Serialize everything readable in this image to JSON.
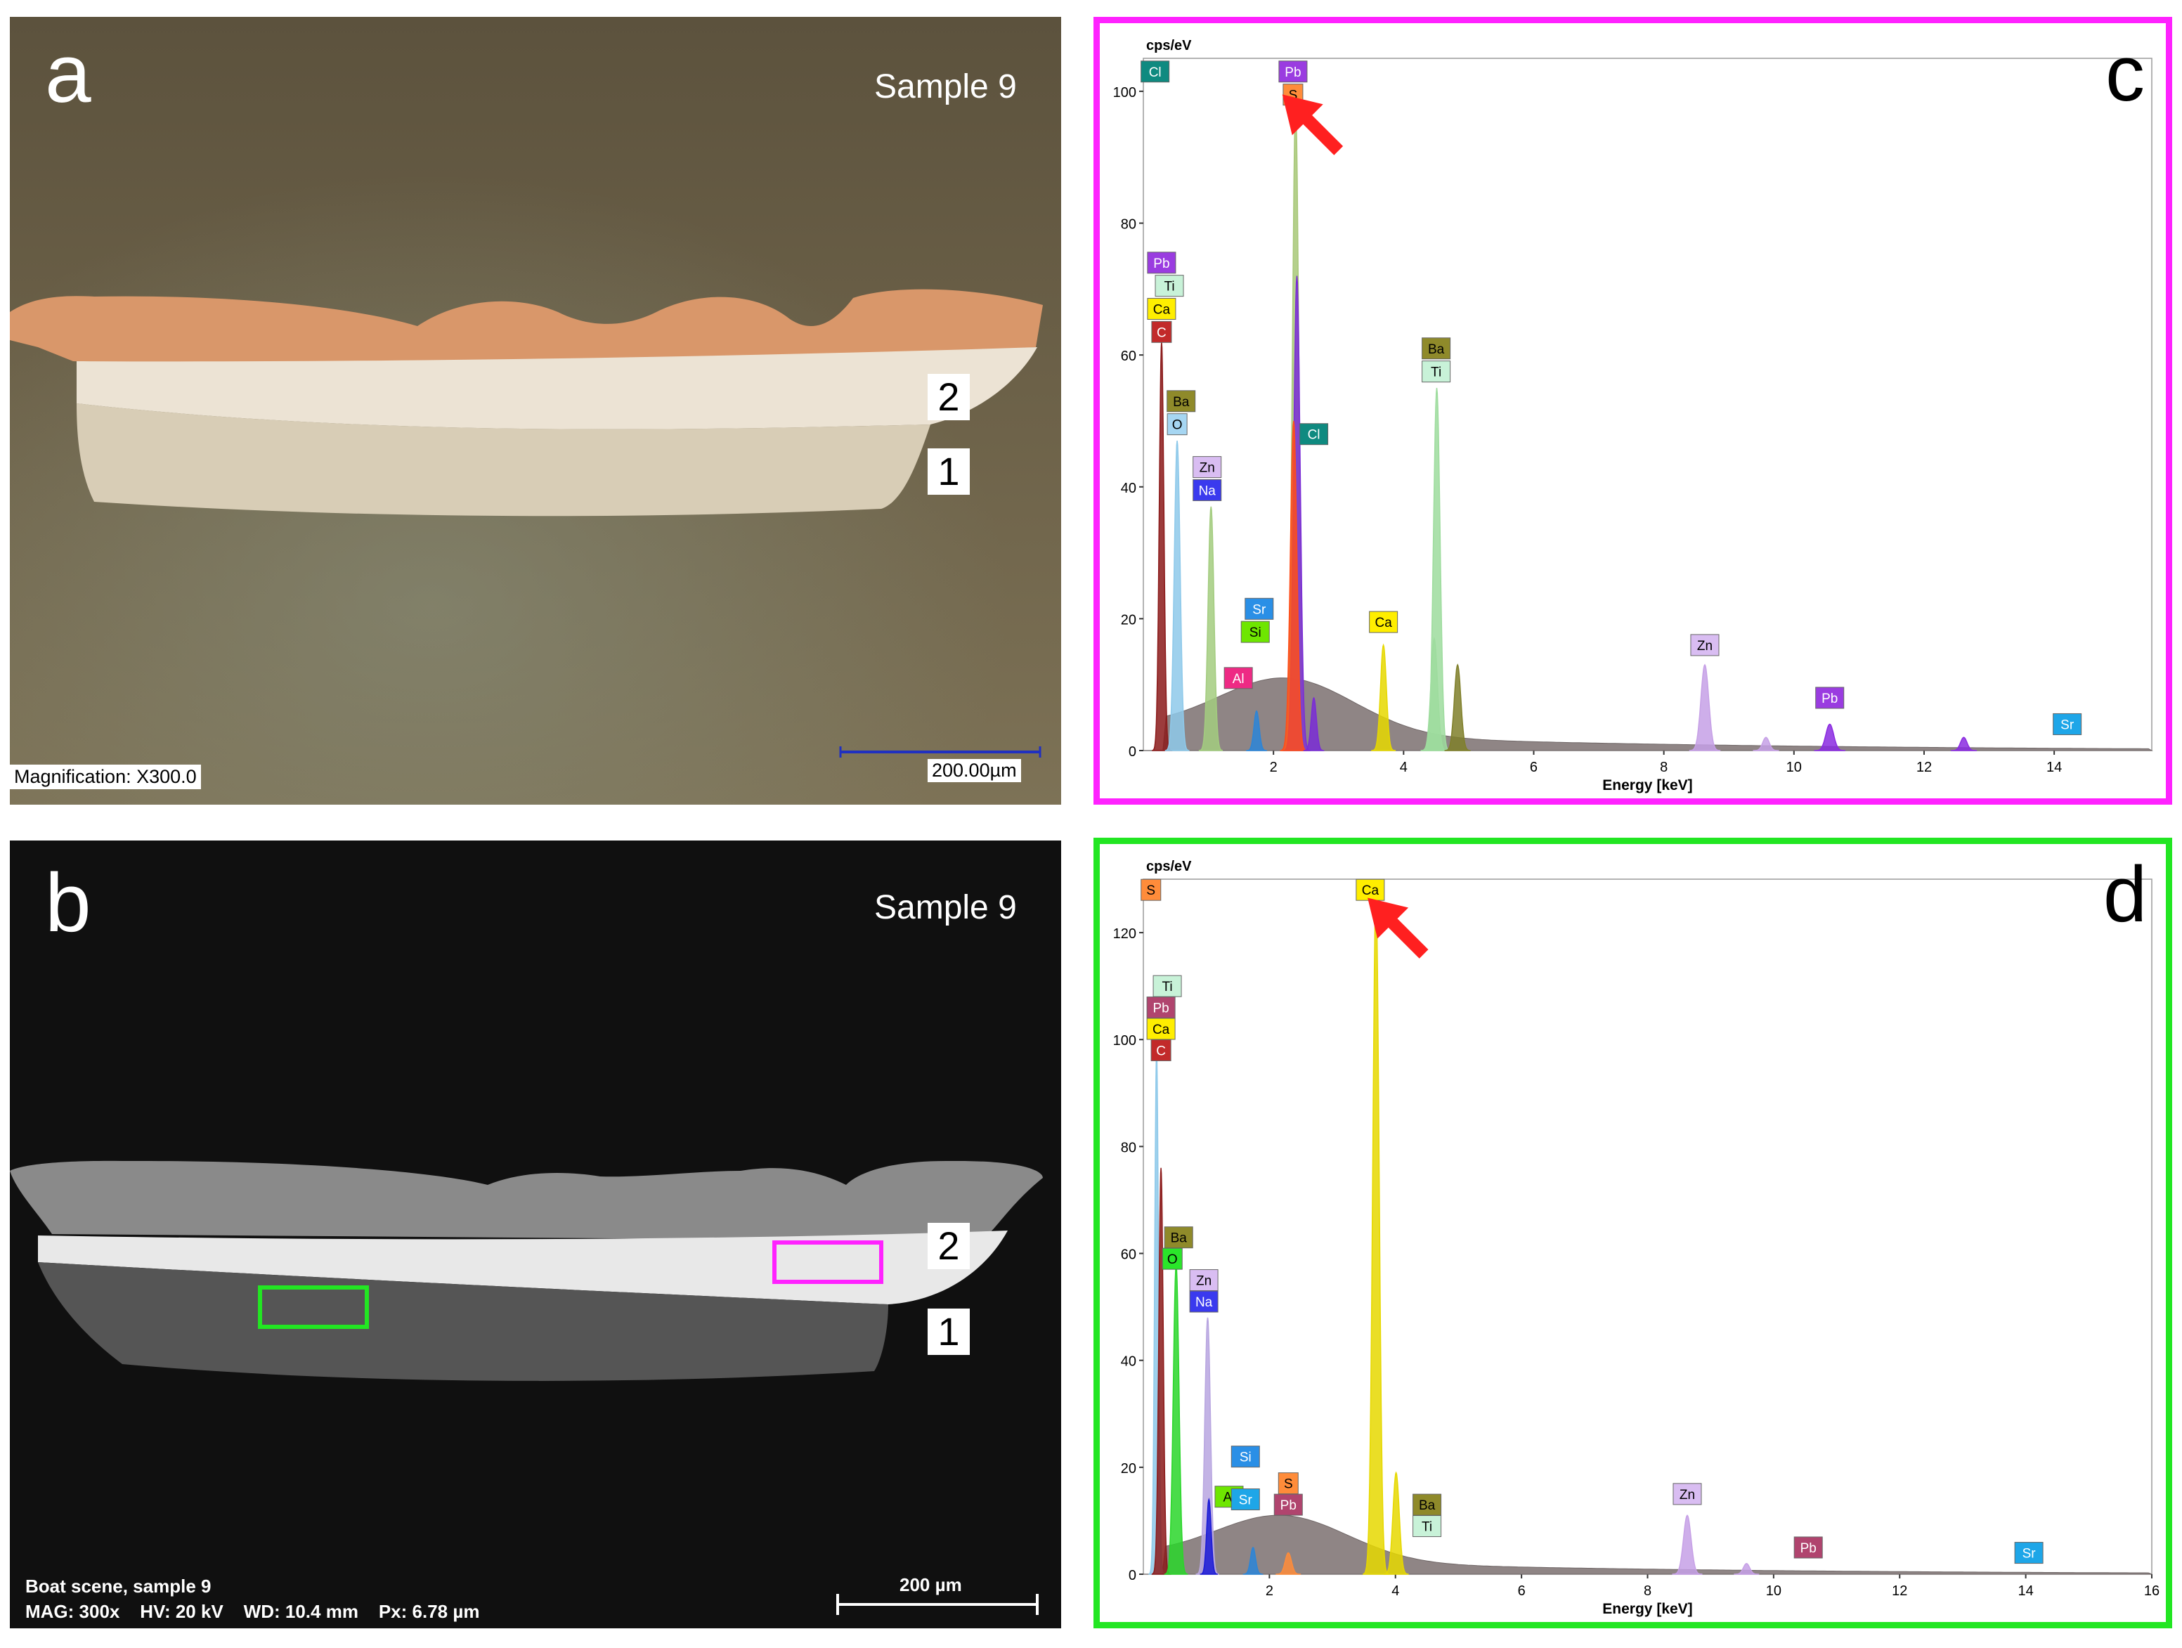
{
  "panel_a": {
    "letter": "a",
    "sample": "Sample 9",
    "layers": [
      "2",
      "1"
    ],
    "magnification": "Magnification: X300.0",
    "scale": "200.00µm"
  },
  "panel_b": {
    "letter": "b",
    "sample": "Sample 9",
    "layers": [
      "2",
      "1"
    ],
    "info_line1": "Boat scene, sample 9",
    "info_line2": "MAG: 300x    HV: 20 kV    WD: 10.4 mm    Px: 6.78 µm",
    "scale": "200 µm",
    "box_colors": {
      "magenta": "#ff22ff",
      "green": "#22e622"
    }
  },
  "chart_data": [
    {
      "type": "area",
      "panel": "c",
      "letter": "c",
      "ylabel": "cps/eV",
      "xlabel": "Energy [keV]",
      "xlim": [
        0,
        15.5
      ],
      "ylim": [
        0,
        105
      ],
      "xticks": [
        2,
        4,
        6,
        8,
        10,
        12,
        14
      ],
      "yticks": [
        0,
        20,
        40,
        60,
        80,
        100
      ],
      "border_color": "#ff22ff",
      "peaks": [
        {
          "e": 0.28,
          "h": 62,
          "c": "#8b1a1a",
          "w": 0.035
        },
        {
          "e": 0.52,
          "h": 47,
          "c": "#8ec9ea",
          "w": 0.045
        },
        {
          "e": 1.04,
          "h": 37,
          "c": "#a3cc7f",
          "w": 0.045
        },
        {
          "e": 1.74,
          "h": 6,
          "c": "#2b85d8",
          "w": 0.04
        },
        {
          "e": 2.34,
          "h": 98,
          "c": "#a8c878",
          "w": 0.05
        },
        {
          "e": 2.36,
          "h": 72,
          "c": "#7a2cd6",
          "w": 0.05
        },
        {
          "e": 2.31,
          "h": 50,
          "c": "#ff4d1a",
          "w": 0.05
        },
        {
          "e": 2.62,
          "h": 8,
          "c": "#7a2cd6",
          "w": 0.04
        },
        {
          "e": 3.69,
          "h": 16,
          "c": "#e6d800",
          "w": 0.045
        },
        {
          "e": 4.51,
          "h": 55,
          "c": "#9edc9e",
          "w": 0.05
        },
        {
          "e": 4.47,
          "h": 17,
          "c": "#9edc9e",
          "w": 0.05
        },
        {
          "e": 4.83,
          "h": 13,
          "c": "#7f7f2a",
          "w": 0.05
        },
        {
          "e": 8.63,
          "h": 13,
          "c": "#c6a0e6",
          "w": 0.06
        },
        {
          "e": 9.57,
          "h": 2,
          "c": "#c6a0e6",
          "w": 0.05
        },
        {
          "e": 10.55,
          "h": 4,
          "c": "#8a2ae0",
          "w": 0.06
        },
        {
          "e": 12.61,
          "h": 2,
          "c": "#8a2ae0",
          "w": 0.05
        }
      ],
      "labels": [
        {
          "t": "Cl",
          "e": 0.18,
          "y": 103,
          "bg": "#0f8a80",
          "fg": "#ffffff"
        },
        {
          "t": "Pb",
          "e": 2.3,
          "y": 103,
          "bg": "#9a3ce0",
          "fg": "#ffffff"
        },
        {
          "t": "S",
          "e": 2.3,
          "y": 99.5,
          "bg": "#ff8c3a",
          "fg": "#000000"
        },
        {
          "t": "Pb",
          "e": 0.28,
          "y": 74,
          "bg": "#9a3ce0",
          "fg": "#ffffff"
        },
        {
          "t": "Ti",
          "e": 0.4,
          "y": 70.5,
          "bg": "#c8f2d8",
          "fg": "#000000"
        },
        {
          "t": "Ca",
          "e": 0.28,
          "y": 67,
          "bg": "#ffee00",
          "fg": "#000000"
        },
        {
          "t": "C",
          "e": 0.28,
          "y": 63.5,
          "bg": "#c22a2a",
          "fg": "#ffffff"
        },
        {
          "t": "Ba",
          "e": 0.58,
          "y": 53,
          "bg": "#8f8a2a",
          "fg": "#000000"
        },
        {
          "t": "O",
          "e": 0.52,
          "y": 49.5,
          "bg": "#a6d6f2",
          "fg": "#000000"
        },
        {
          "t": "Zn",
          "e": 0.98,
          "y": 43,
          "bg": "#d9bdf2",
          "fg": "#000000"
        },
        {
          "t": "Na",
          "e": 0.98,
          "y": 39.5,
          "bg": "#3a3aee",
          "fg": "#ffffff"
        },
        {
          "t": "Cl",
          "e": 2.62,
          "y": 48,
          "bg": "#0f8a80",
          "fg": "#ffffff"
        },
        {
          "t": "Ba",
          "e": 4.5,
          "y": 61,
          "bg": "#8f8a2a",
          "fg": "#000000"
        },
        {
          "t": "Ti",
          "e": 4.5,
          "y": 57.5,
          "bg": "#c8f2d8",
          "fg": "#000000"
        },
        {
          "t": "Sr",
          "e": 1.78,
          "y": 21.5,
          "bg": "#2a8fe6",
          "fg": "#ffffff"
        },
        {
          "t": "Si",
          "e": 1.72,
          "y": 18,
          "bg": "#6ee600",
          "fg": "#000000"
        },
        {
          "t": "Al",
          "e": 1.46,
          "y": 11,
          "bg": "#ee2a84",
          "fg": "#ffffff"
        },
        {
          "t": "Ca",
          "e": 3.69,
          "y": 19.5,
          "bg": "#ffee00",
          "fg": "#000000"
        },
        {
          "t": "Zn",
          "e": 8.63,
          "y": 16,
          "bg": "#d9bdf2",
          "fg": "#000000"
        },
        {
          "t": "Pb",
          "e": 10.55,
          "y": 8,
          "bg": "#9a3ce0",
          "fg": "#ffffff"
        },
        {
          "t": "Sr",
          "e": 14.2,
          "y": 4,
          "bg": "#1ea6e8",
          "fg": "#ffffff"
        }
      ],
      "arrow": {
        "e": 3.0,
        "y": 91,
        "color": "#ff2020"
      }
    },
    {
      "type": "area",
      "panel": "d",
      "letter": "d",
      "ylabel": "cps/eV",
      "xlabel": "Energy [keV]",
      "xlim": [
        0,
        16
      ],
      "ylim": [
        0,
        130
      ],
      "xticks": [
        2,
        4,
        6,
        8,
        10,
        12,
        14,
        16
      ],
      "yticks": [
        0,
        20,
        40,
        60,
        80,
        100,
        120
      ],
      "border_color": "#22e622",
      "peaks": [
        {
          "e": 0.21,
          "h": 98,
          "c": "#8ec9ea",
          "w": 0.03
        },
        {
          "e": 0.28,
          "h": 76,
          "c": "#8b1a1a",
          "w": 0.035
        },
        {
          "e": 0.52,
          "h": 58,
          "c": "#2ad62a",
          "w": 0.045
        },
        {
          "e": 1.02,
          "h": 48,
          "c": "#b8a6e0",
          "w": 0.045
        },
        {
          "e": 1.04,
          "h": 14,
          "c": "#1a1ad6",
          "w": 0.035
        },
        {
          "e": 1.74,
          "h": 5,
          "c": "#2b85d8",
          "w": 0.04
        },
        {
          "e": 2.3,
          "h": 4,
          "c": "#ff8c3a",
          "w": 0.05
        },
        {
          "e": 3.69,
          "h": 128,
          "c": "#e6d800",
          "w": 0.05
        },
        {
          "e": 4.01,
          "h": 19,
          "c": "#e6d800",
          "w": 0.05
        },
        {
          "e": 8.63,
          "h": 11,
          "c": "#c6a0e6",
          "w": 0.06
        },
        {
          "e": 9.57,
          "h": 2,
          "c": "#c6a0e6",
          "w": 0.05
        }
      ],
      "labels": [
        {
          "t": "S",
          "e": 0.12,
          "y": 128,
          "bg": "#ff8c3a",
          "fg": "#000000"
        },
        {
          "t": "Ca",
          "e": 3.6,
          "y": 128,
          "bg": "#ffee00",
          "fg": "#000000"
        },
        {
          "t": "Ti",
          "e": 0.38,
          "y": 110,
          "bg": "#c8f2d8",
          "fg": "#000000"
        },
        {
          "t": "Pb",
          "e": 0.28,
          "y": 106,
          "bg": "#b0446e",
          "fg": "#ffffff"
        },
        {
          "t": "Ca",
          "e": 0.28,
          "y": 102,
          "bg": "#ffee00",
          "fg": "#000000"
        },
        {
          "t": "C",
          "e": 0.28,
          "y": 98,
          "bg": "#c22a2a",
          "fg": "#ffffff"
        },
        {
          "t": "Ba",
          "e": 0.56,
          "y": 63,
          "bg": "#8f8a2a",
          "fg": "#000000"
        },
        {
          "t": "O",
          "e": 0.46,
          "y": 59,
          "bg": "#2ae62a",
          "fg": "#000000"
        },
        {
          "t": "Zn",
          "e": 0.96,
          "y": 55,
          "bg": "#d9bdf2",
          "fg": "#000000"
        },
        {
          "t": "Na",
          "e": 0.96,
          "y": 51,
          "bg": "#3a3aee",
          "fg": "#ffffff"
        },
        {
          "t": "Si",
          "e": 1.62,
          "y": 22,
          "bg": "#2a8fe6",
          "fg": "#ffffff"
        },
        {
          "t": "Al",
          "e": 1.36,
          "y": 14.5,
          "bg": "#6ee600",
          "fg": "#000000"
        },
        {
          "t": "Sr",
          "e": 1.62,
          "y": 14,
          "bg": "#1ea6e8",
          "fg": "#ffffff"
        },
        {
          "t": "S",
          "e": 2.3,
          "y": 17,
          "bg": "#ff8c3a",
          "fg": "#000000"
        },
        {
          "t": "Pb",
          "e": 2.3,
          "y": 13,
          "bg": "#b0446e",
          "fg": "#ffffff"
        },
        {
          "t": "Ba",
          "e": 4.5,
          "y": 13,
          "bg": "#8f8a2a",
          "fg": "#000000"
        },
        {
          "t": "Ti",
          "e": 4.5,
          "y": 9,
          "bg": "#c8f2d8",
          "fg": "#000000"
        },
        {
          "t": "Zn",
          "e": 8.63,
          "y": 15,
          "bg": "#d9bdf2",
          "fg": "#000000"
        },
        {
          "t": "Pb",
          "e": 10.55,
          "y": 5,
          "bg": "#b0446e",
          "fg": "#ffffff"
        },
        {
          "t": "Sr",
          "e": 14.05,
          "y": 4,
          "bg": "#1ea6e8",
          "fg": "#ffffff"
        }
      ],
      "arrow": {
        "e": 4.45,
        "y": 116,
        "color": "#ff2020"
      }
    }
  ]
}
